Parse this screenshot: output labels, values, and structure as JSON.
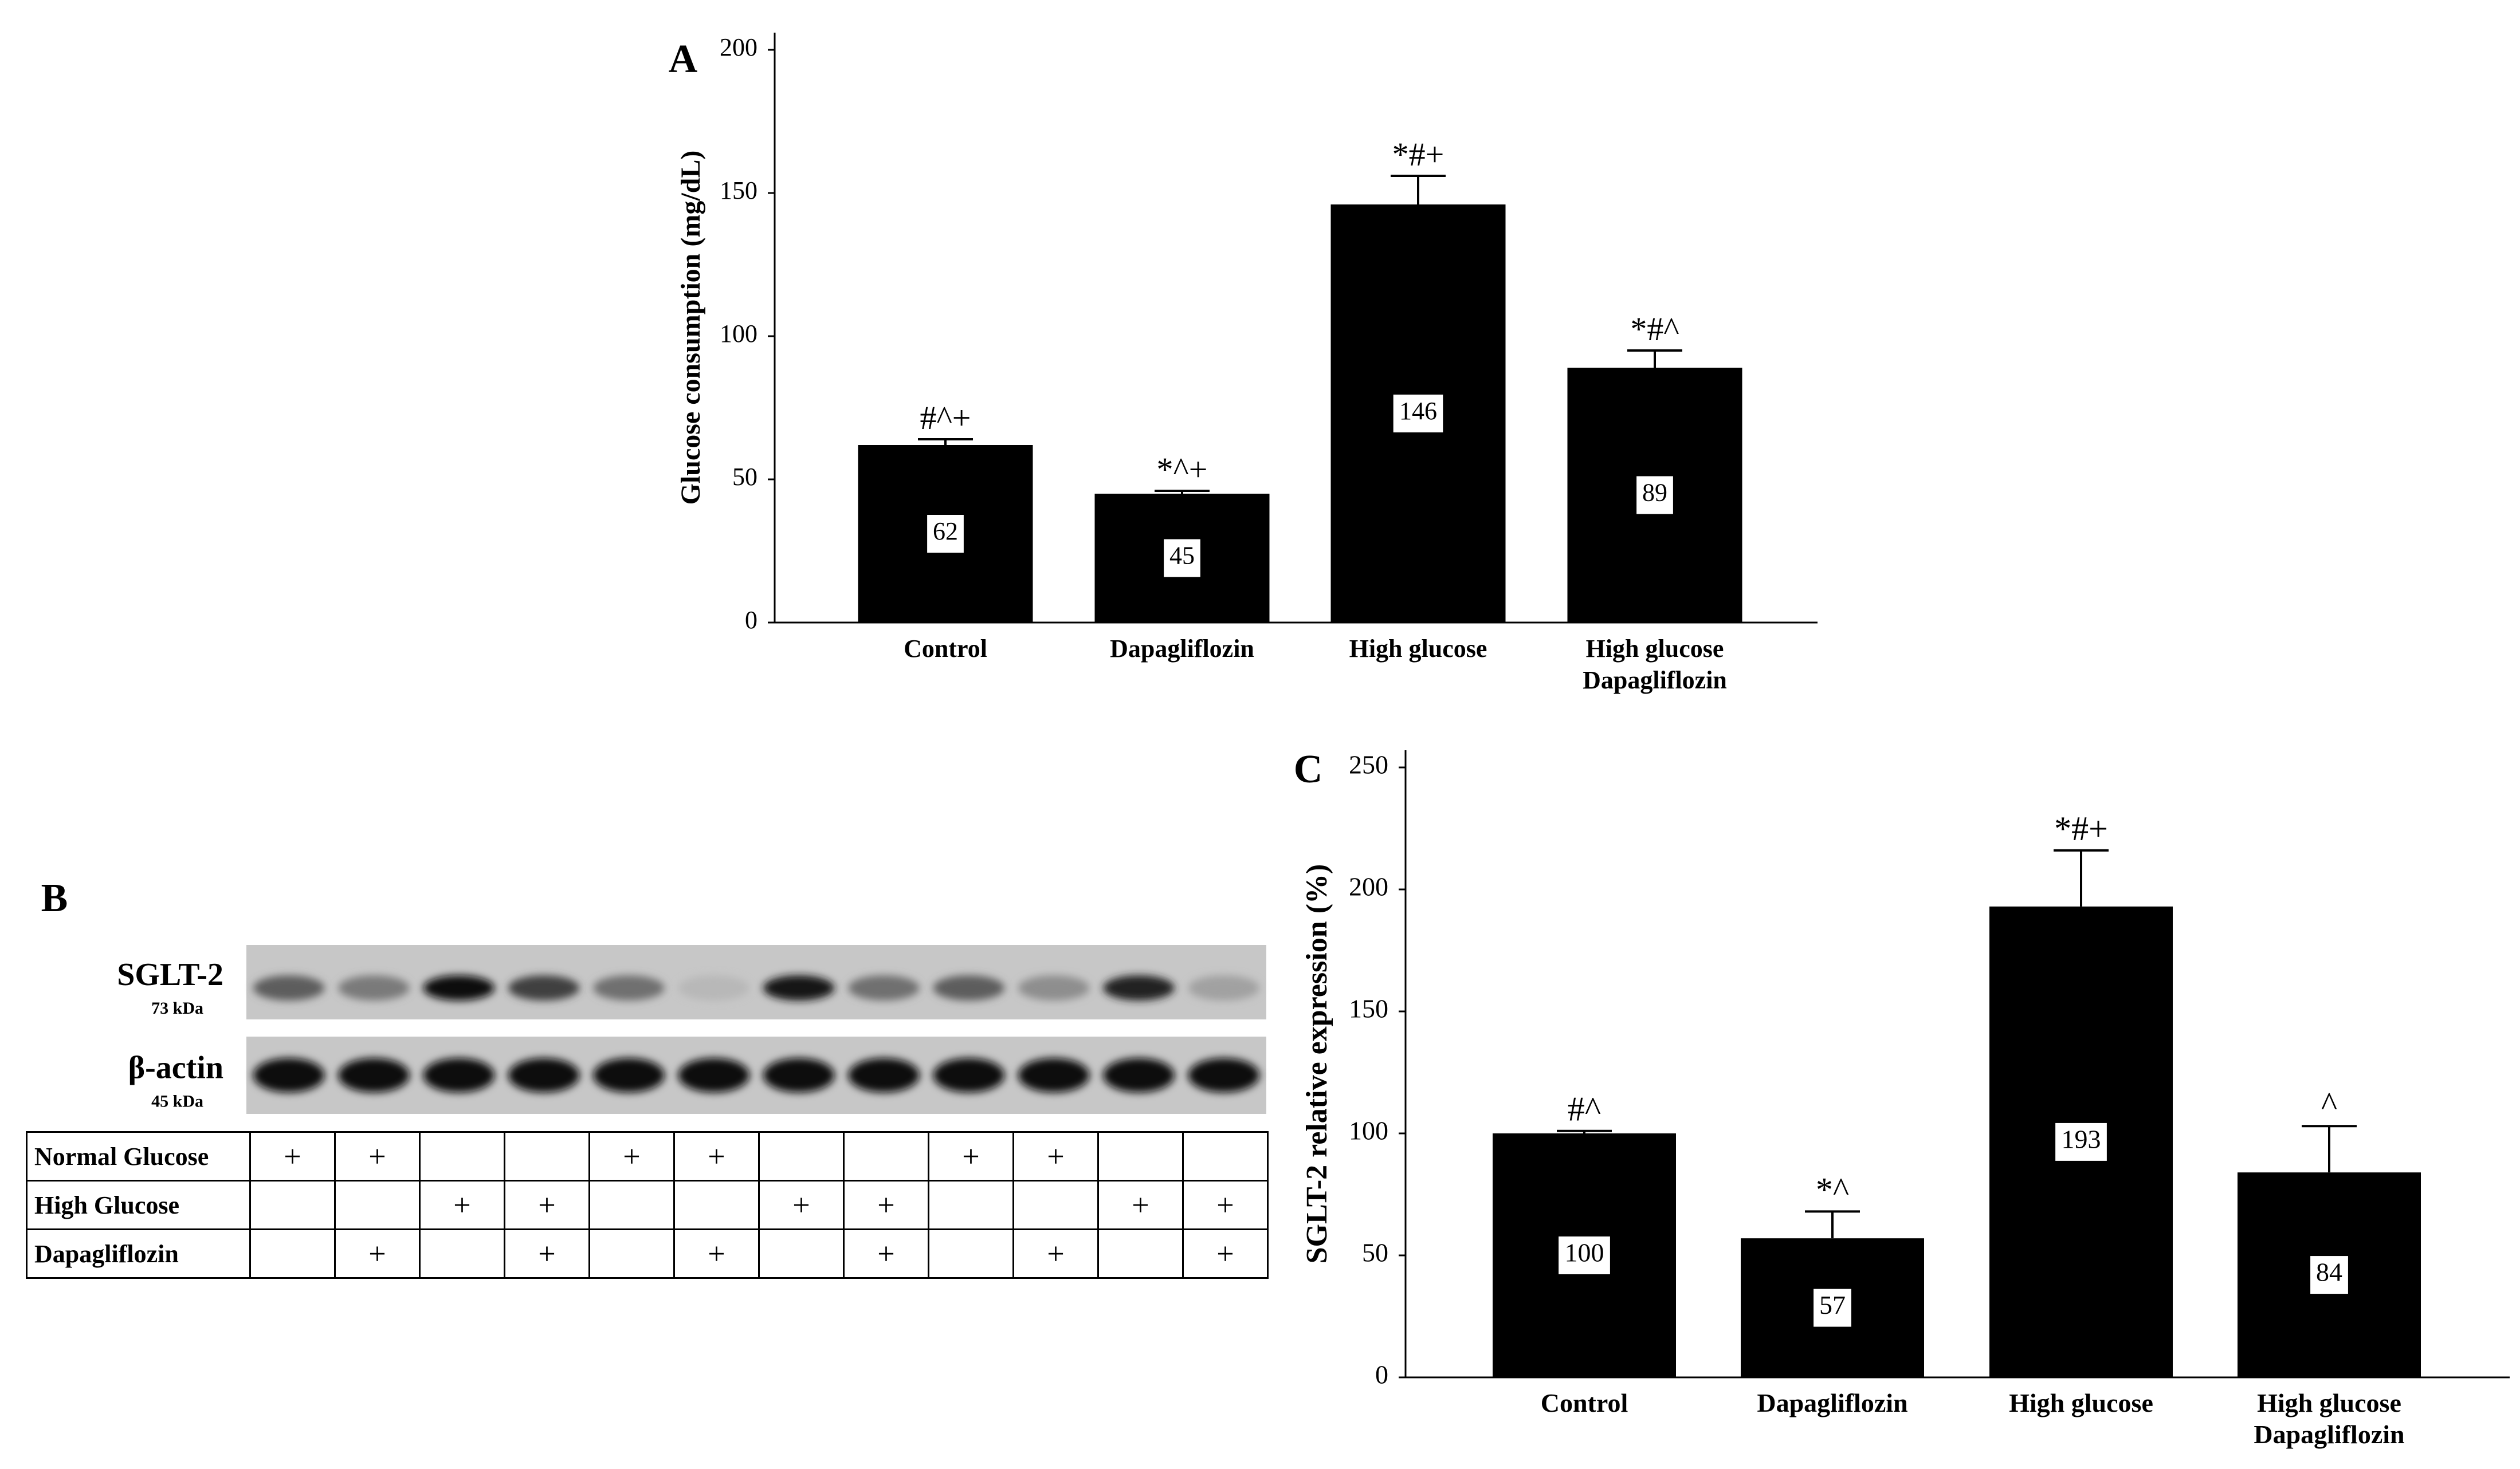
{
  "chart_data": [
    {
      "panel_label": "A",
      "type": "bar",
      "categories": [
        "Control",
        "Dapagliflozin",
        "High glucose",
        "High glucose\nDapagliflozin"
      ],
      "values": [
        62,
        45,
        146,
        89
      ],
      "errors": [
        2,
        1,
        10,
        6
      ],
      "value_labels": [
        "62",
        "45",
        "146",
        "89"
      ],
      "significance": [
        "#^+",
        "*^+",
        "*#+",
        "*#^"
      ],
      "ylabel": "Glucose consumption (mg/dL)",
      "xlabel": "",
      "ylim": [
        0,
        200
      ],
      "yticks": [
        0,
        50,
        100,
        150,
        200
      ],
      "bar_color": "#000000"
    },
    {
      "panel_label": "C",
      "type": "bar",
      "categories": [
        "Control",
        "Dapagliflozin",
        "High glucose",
        "High glucose\nDapagliflozin"
      ],
      "values": [
        100,
        57,
        193,
        84
      ],
      "errors": [
        1,
        11,
        23,
        19
      ],
      "value_labels": [
        "100",
        "57",
        "193",
        "84"
      ],
      "significance": [
        "#^",
        "*^",
        "*#+",
        "^"
      ],
      "ylabel": "SGLT-2 relative expression (%)",
      "xlabel": "",
      "ylim": [
        0,
        250
      ],
      "yticks": [
        0,
        50,
        100,
        150,
        200,
        250
      ],
      "bar_color": "#000000"
    }
  ],
  "blot": {
    "panel_label": "B",
    "bands": [
      {
        "name": "SGLT-2",
        "size": "73 kDa",
        "intensities": [
          0.55,
          0.4,
          0.95,
          0.7,
          0.45,
          0.08,
          0.9,
          0.45,
          0.55,
          0.3,
          0.85,
          0.2
        ]
      },
      {
        "name": "β-actin",
        "size": "45 kDa",
        "intensities": [
          0.95,
          0.95,
          0.95,
          0.95,
          0.95,
          0.95,
          0.95,
          0.95,
          0.95,
          0.95,
          0.95,
          0.95
        ]
      }
    ],
    "conditions": [
      {
        "label": "Normal Glucose",
        "marks": [
          "+",
          "+",
          "",
          "",
          "+",
          "+",
          "",
          "",
          "+",
          "+",
          "",
          ""
        ]
      },
      {
        "label": "High Glucose",
        "marks": [
          "",
          "",
          "+",
          "+",
          "",
          "",
          "+",
          "+",
          "",
          "",
          "+",
          "+"
        ]
      },
      {
        "label": "Dapagliflozin",
        "marks": [
          "",
          "+",
          "",
          "+",
          "",
          "+",
          "",
          "+",
          "",
          "+",
          "",
          "+"
        ]
      }
    ]
  }
}
